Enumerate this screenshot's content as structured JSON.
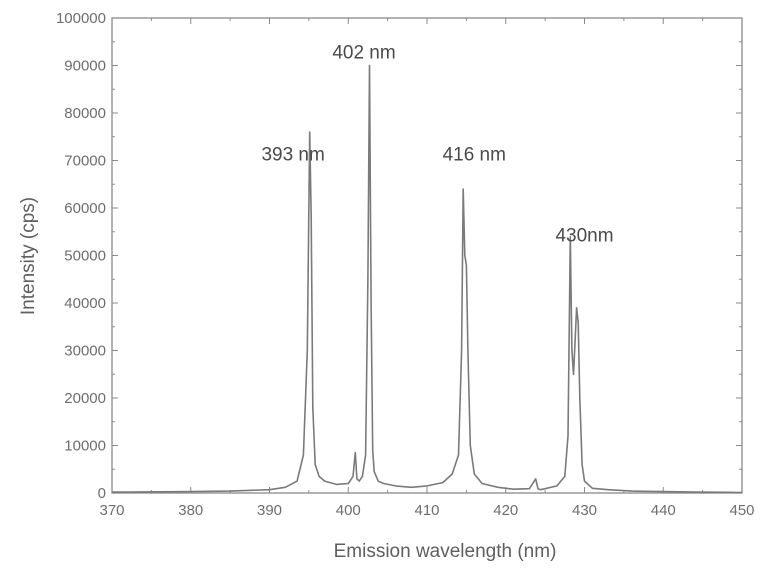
{
  "chart_data": {
    "type": "line",
    "xlabel": "Emission wavelength (nm)",
    "ylabel": "Intensity (cps)",
    "xlim": [
      370,
      450
    ],
    "ylim": [
      0,
      100000
    ],
    "xticks": [
      370,
      380,
      390,
      400,
      410,
      420,
      430,
      440,
      450
    ],
    "yticks": [
      0,
      10000,
      20000,
      30000,
      40000,
      50000,
      60000,
      70000,
      80000,
      90000,
      100000
    ],
    "grid": false,
    "legend": "none",
    "line_color": "#7a7a7a",
    "series": [
      {
        "x": [
          370,
          380,
          385,
          390,
          392,
          393.5,
          394.3,
          394.8,
          395.1,
          395.3,
          395.5,
          395.8,
          396.3,
          397,
          398.5,
          400,
          400.6,
          400.9,
          401.1,
          401.4,
          401.8,
          402.2,
          402.5,
          402.7,
          402.9,
          403.1,
          403.3,
          403.8,
          404.5,
          406,
          408,
          410,
          412,
          413.2,
          414,
          414.4,
          414.6,
          414.8,
          415,
          415.2,
          415.5,
          416,
          417,
          419,
          421,
          423,
          423.8,
          424.1,
          424.4,
          425,
          426.5,
          427.5,
          427.9,
          428.2,
          428.4,
          428.6,
          428.8,
          429.0,
          429.2,
          429.4,
          429.7,
          430,
          431,
          433,
          436,
          440,
          444,
          448,
          450
        ],
        "y": [
          200,
          300,
          400,
          700,
          1200,
          2500,
          8000,
          30000,
          76000,
          58000,
          18000,
          6000,
          3500,
          2500,
          1800,
          2000,
          3500,
          8500,
          3000,
          2500,
          3500,
          8000,
          45000,
          90000,
          40000,
          9000,
          4500,
          2500,
          2000,
          1500,
          1200,
          1500,
          2200,
          4000,
          8000,
          30000,
          64000,
          50000,
          48000,
          30000,
          10000,
          4000,
          2000,
          1200,
          800,
          900,
          3000,
          900,
          700,
          900,
          1500,
          3500,
          12000,
          54000,
          30000,
          25000,
          32000,
          39000,
          36000,
          20000,
          6000,
          2500,
          1000,
          700,
          400,
          300,
          200,
          150,
          100
        ]
      }
    ],
    "annotations": [
      {
        "text": "393 nm",
        "x": 393,
        "y": 70000
      },
      {
        "text": "402 nm",
        "x": 402,
        "y": 91500
      },
      {
        "text": "416 nm",
        "x": 416,
        "y": 70000
      },
      {
        "text": "430nm",
        "x": 430,
        "y": 53000
      }
    ]
  },
  "colors": {
    "axis": "#8a8a8a",
    "text": "#6e6e6e",
    "line": "#7a7a7a"
  }
}
